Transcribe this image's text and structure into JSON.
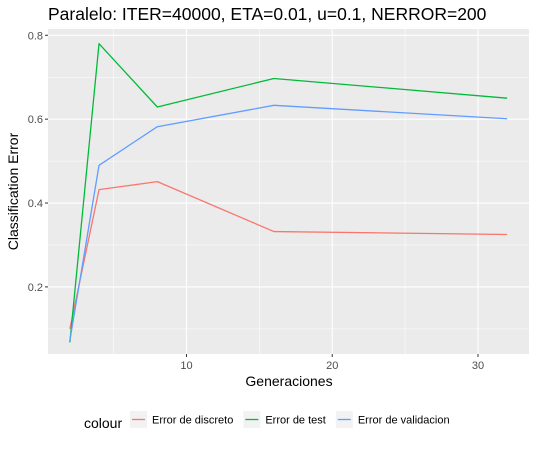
{
  "chart_data": {
    "type": "line",
    "title": "Paralelo: ITER=40000, ETA=0.01, u=0.1, NERROR=200",
    "xlabel": "Generaciones",
    "ylabel": "Classification Error",
    "xlim": [
      0.5,
      33.5
    ],
    "ylim": [
      0.04,
      0.815
    ],
    "xticks": [
      10,
      20,
      30
    ],
    "xtick_labels": [
      "10",
      "20",
      "30"
    ],
    "yticks": [
      0.2,
      0.4,
      0.6,
      0.8
    ],
    "ytick_labels": [
      "0.2",
      "0.4",
      "0.6",
      "0.8"
    ],
    "grid": true,
    "legend_title": "colour",
    "legend_position": "bottom",
    "series": [
      {
        "name": "Error de discreto",
        "color": "#F8766D",
        "x": [
          2,
          4,
          8,
          16,
          32
        ],
        "y": [
          0.1,
          0.432,
          0.451,
          0.332,
          0.325
        ]
      },
      {
        "name": "Error de test",
        "color": "#00BA38",
        "x": [
          2,
          4,
          8,
          16,
          32
        ],
        "y": [
          0.068,
          0.78,
          0.629,
          0.697,
          0.65
        ]
      },
      {
        "name": "Error de validacion",
        "color": "#619CFF",
        "x": [
          2,
          4,
          8,
          16,
          32
        ],
        "y": [
          0.072,
          0.49,
          0.582,
          0.633,
          0.601
        ]
      }
    ]
  }
}
